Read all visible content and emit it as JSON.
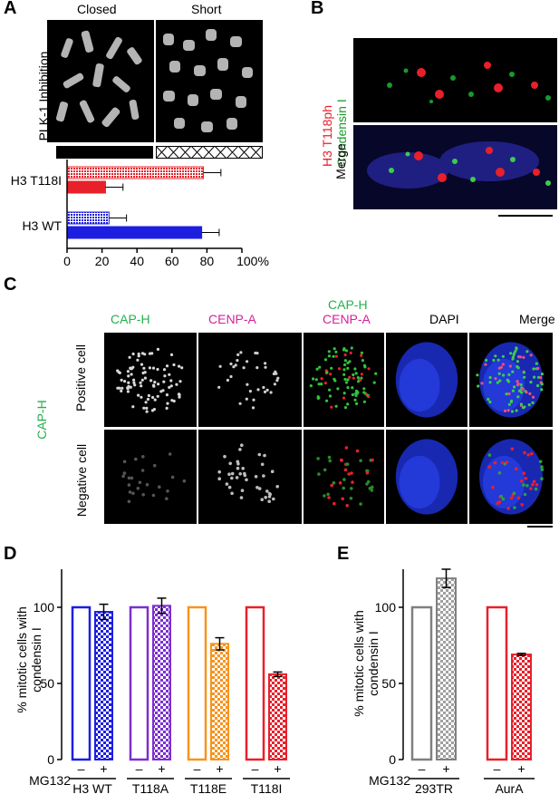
{
  "panels": {
    "A": {
      "label": "A",
      "col_labels": [
        "Closed",
        "Short"
      ],
      "row_label": "PLK-1 Inhibition",
      "chart_data": {
        "type": "bar",
        "orientation": "horizontal",
        "categories": [
          "H3 T118I",
          "H3 WT"
        ],
        "series": [
          {
            "pattern": "hatched",
            "colors": [
              "#e8202a",
              "#1d1ee0"
            ],
            "values": [
              78,
              24
            ],
            "errors": [
              10,
              10
            ]
          },
          {
            "pattern": "solid",
            "colors": [
              "#e8202a",
              "#1d1ee0"
            ],
            "values": [
              22,
              77
            ],
            "errors": [
              10,
              10
            ]
          }
        ],
        "xlim": [
          0,
          100
        ],
        "xticks": [
          "0",
          "20",
          "40",
          "60",
          "80",
          "100%"
        ],
        "xtick_values": [
          0,
          20,
          40,
          60,
          80,
          100
        ]
      }
    },
    "B": {
      "label": "B",
      "row1_label_parts": [
        "H3 T118ph",
        "Condensin I"
      ],
      "row1_colors": [
        "#e8202a",
        "#1a9a2a"
      ],
      "row2_label": "Merge"
    },
    "C": {
      "label": "C",
      "col_labels": [
        "CAP-H",
        "CENP-A",
        "CAP-H",
        "CENP-A",
        "DAPI",
        "Merge"
      ],
      "col_colors": {
        "cap": "#23b14d",
        "cenp": "#d4229a"
      },
      "group_label": "CAP-H",
      "row_labels": [
        "Positive cell",
        "Negative cell"
      ]
    },
    "D": {
      "label": "D",
      "ylabel": "% mitotic cells with\ncondensin I",
      "ylabel_lines": [
        "% mitotic cells with",
        "condensin I"
      ],
      "treatment_label": "MG132",
      "signs": [
        "–",
        "+"
      ],
      "chart_data": {
        "type": "bar",
        "categories": [
          "H3 WT",
          "T118A",
          "T118E",
          "T118I"
        ],
        "colors": [
          "#1d1ee0",
          "#7b2fd0",
          "#f7941d",
          "#e8202a"
        ],
        "series": [
          {
            "name": "–",
            "values": [
              100,
              100,
              100,
              100
            ]
          },
          {
            "name": "+",
            "values": [
              97,
              101,
              76,
              56
            ],
            "errors": [
              5,
              5,
              4,
              1.5
            ]
          }
        ],
        "ylim": [
          0,
          125
        ],
        "yticks": [
          0,
          50,
          100
        ]
      }
    },
    "E": {
      "label": "E",
      "ylabel_lines": [
        "% mitotic cells with",
        "condensin I"
      ],
      "treatment_label": "MG132",
      "signs": [
        "–",
        "+"
      ],
      "chart_data": {
        "type": "bar",
        "categories": [
          "293TR",
          "AurA"
        ],
        "colors": [
          "#808080",
          "#e8202a"
        ],
        "series": [
          {
            "name": "–",
            "values": [
              100,
              100
            ]
          },
          {
            "name": "+",
            "values": [
              119,
              69
            ],
            "errors": [
              6,
              0.7
            ]
          }
        ],
        "ylim": [
          0,
          125
        ],
        "yticks": [
          0,
          50,
          100
        ]
      }
    }
  }
}
